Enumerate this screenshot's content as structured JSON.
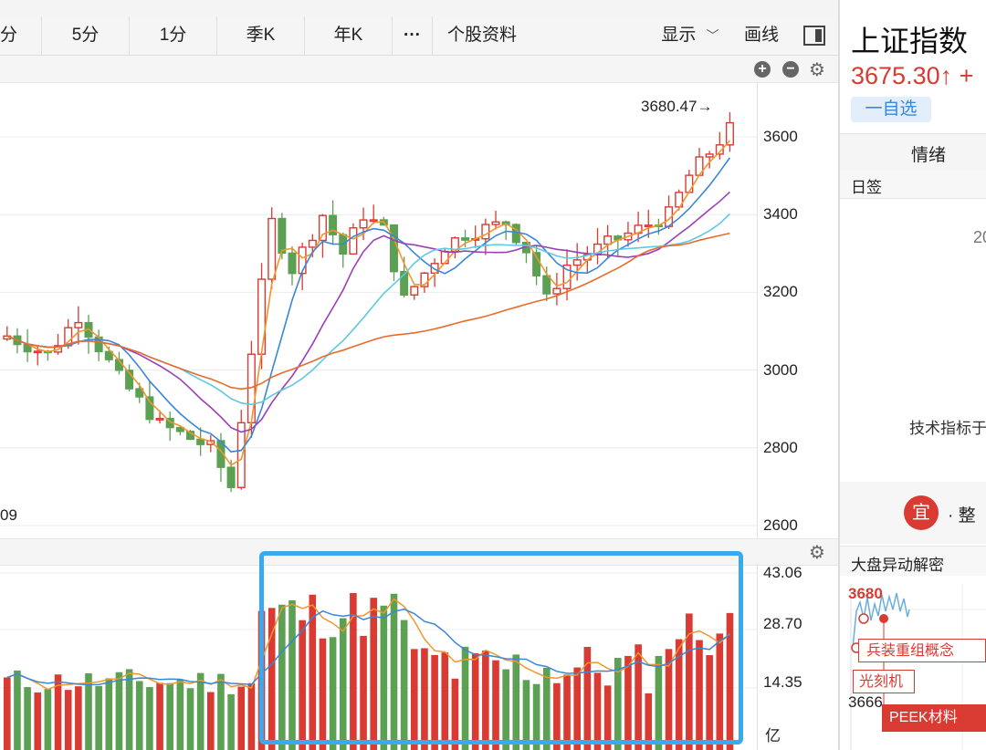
{
  "toolbar": {
    "tabs": [
      {
        "label": "分"
      },
      {
        "label": "5分"
      },
      {
        "label": "1分"
      },
      {
        "label": "季K"
      },
      {
        "label": "年K"
      },
      {
        "label": "···"
      },
      {
        "label": "个股资料"
      }
    ],
    "display_label": "显示",
    "draw_label": "画线"
  },
  "price_chart": {
    "y_ticks": [
      "3600",
      "3400",
      "3200",
      "3000",
      "2800",
      "2600"
    ],
    "high_label": "3680.47→",
    "low_label_partial": "09"
  },
  "volume_chart": {
    "y_ticks": [
      "43.06",
      "28.70",
      "14.35"
    ],
    "unit": "亿"
  },
  "sidebar": {
    "index_name": "上证指数",
    "price": "3675.30↑ +",
    "watchlist_button": "一自选",
    "tab_sentiment": "情绪",
    "section_daily": "日签",
    "partial_value": "20",
    "tech_indicator_text": "技术指标于",
    "advice_badge": "宜",
    "advice_text": "· 整",
    "market_anomaly_title": "大盘异动解密",
    "mini_price_top": "3680",
    "mini_price_bottom": "3666",
    "tags": [
      "兵装重组概念",
      "光刻机",
      "PEEK材料"
    ]
  },
  "colors": {
    "up": "#d93a32",
    "down": "#5ba053",
    "accent": "#3aa9ee",
    "ma5": "#f0962c",
    "ma10": "#3a86d8",
    "ma20": "#9a3fb8",
    "ma30": "#5ec9e0",
    "ma60": "#e86b2c"
  }
}
